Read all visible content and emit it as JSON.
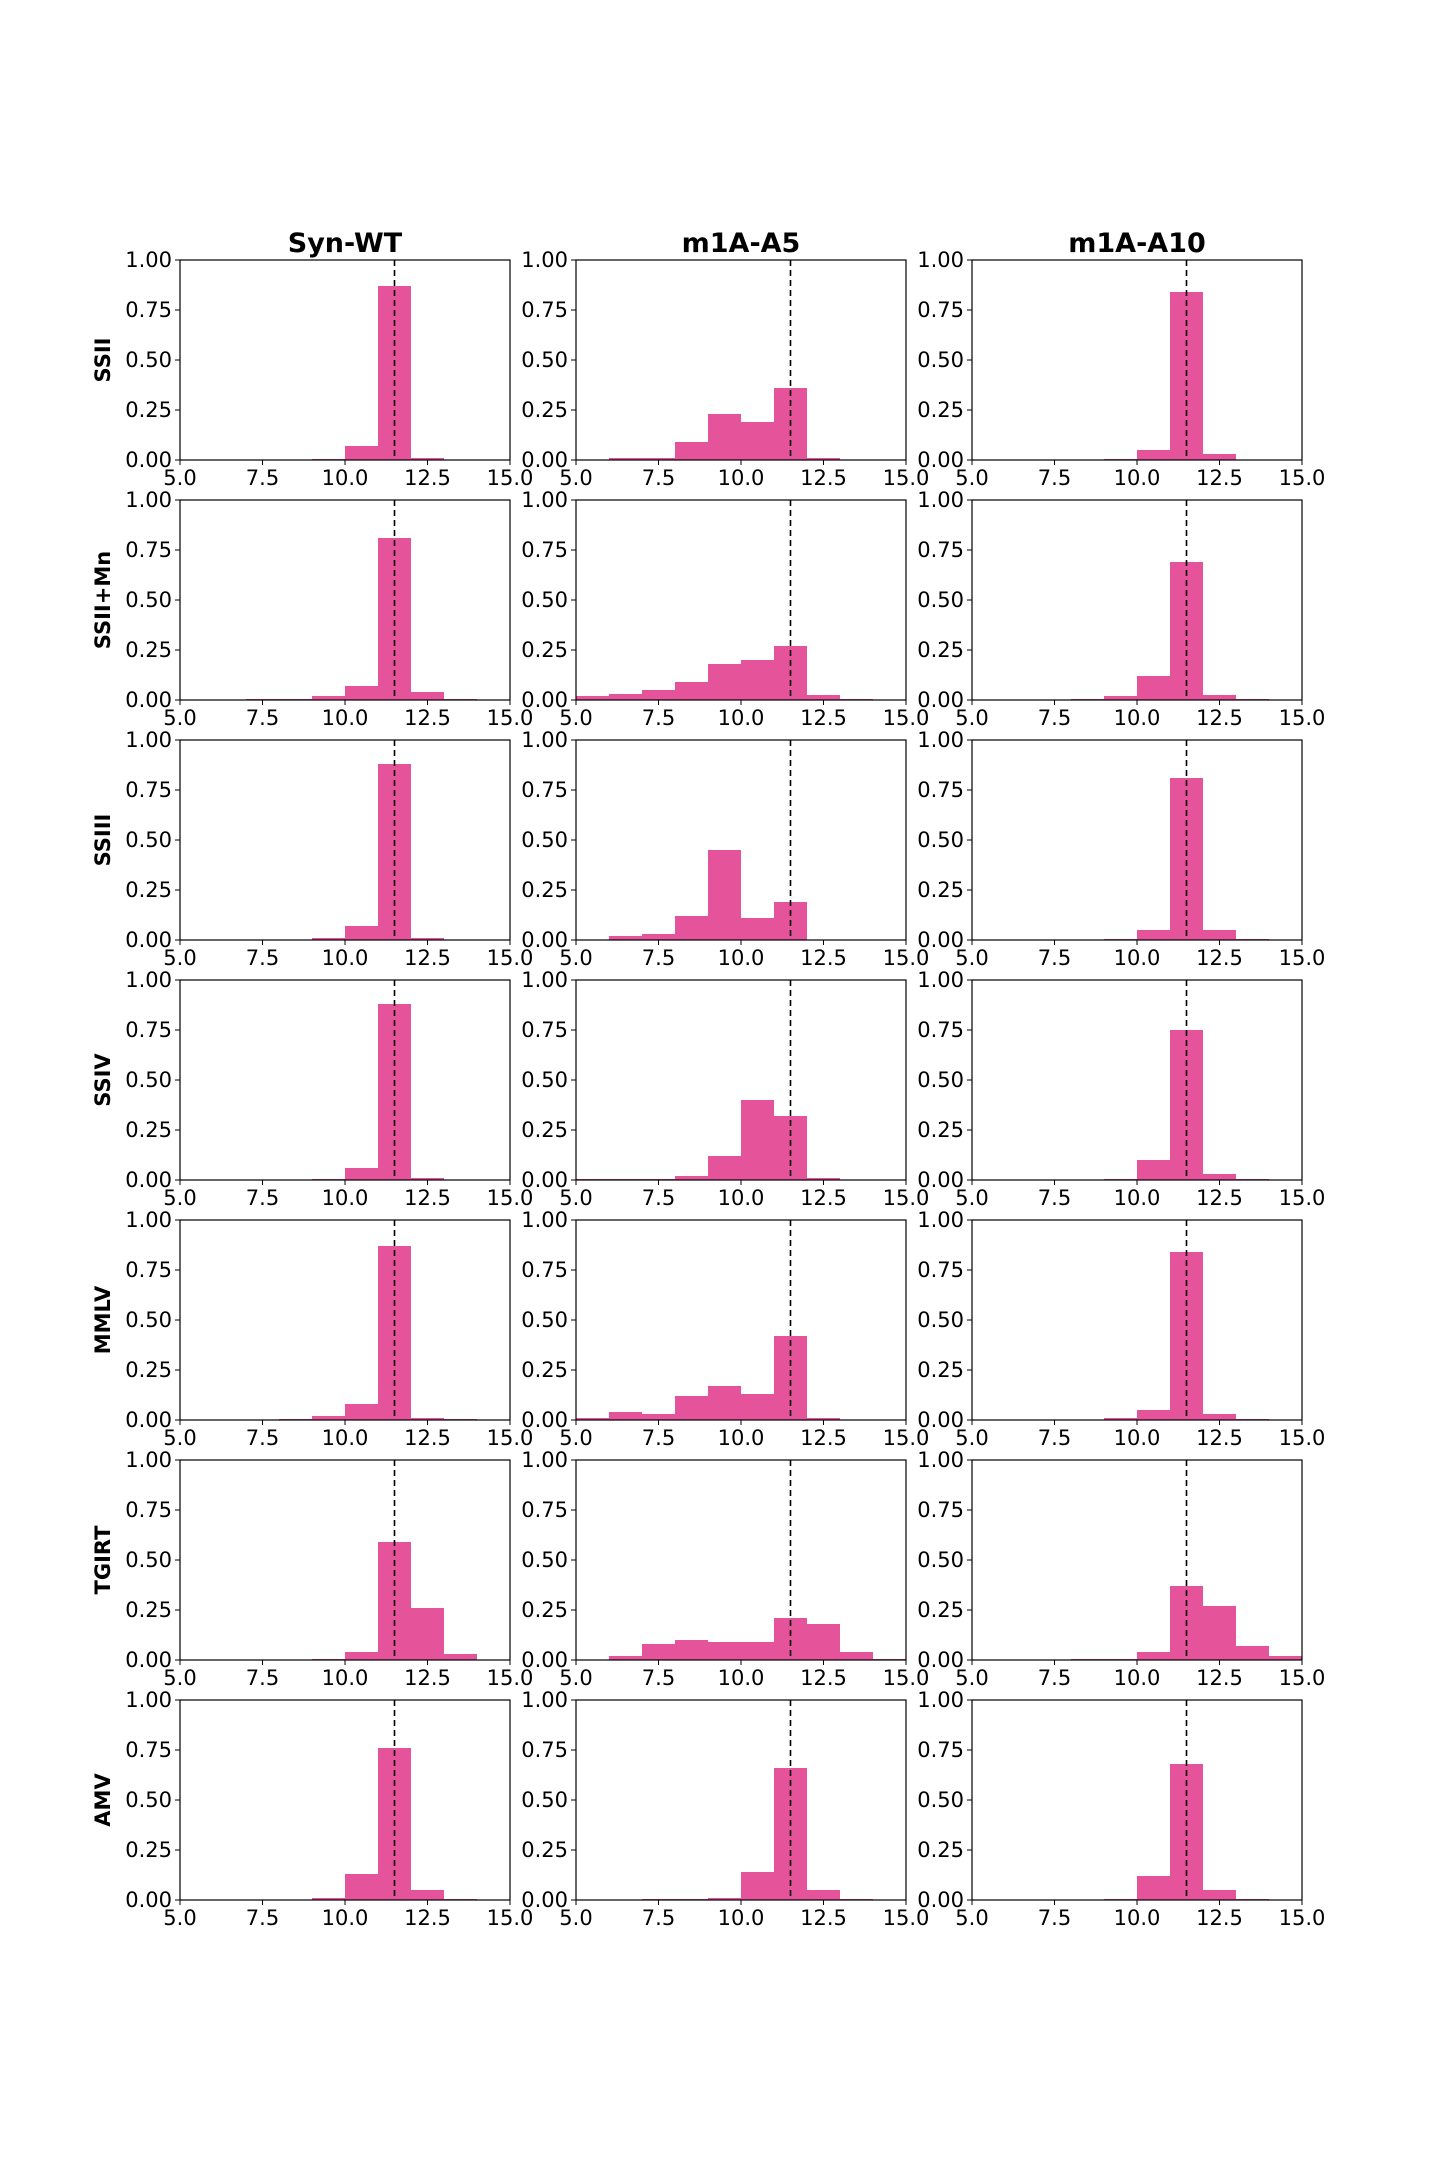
{
  "colors": {
    "bar": "#e5539a",
    "refline": "#000000",
    "frame": "#000000"
  },
  "chart_data": {
    "type": "bar",
    "layout": "grid",
    "columns": [
      "Syn-WT",
      "m1A-A5",
      "m1A-A10"
    ],
    "rows": [
      "SSII",
      "SSII+Mn",
      "SSIII",
      "SSIV",
      "MMLV",
      "TGIRT",
      "AMV"
    ],
    "xlim": [
      5.0,
      15.0
    ],
    "ylim": [
      0.0,
      1.0
    ],
    "xticks": [
      "5.0",
      "7.5",
      "10.0",
      "12.5",
      "15.0"
    ],
    "yticks": [
      "0.00",
      "0.25",
      "0.50",
      "0.75",
      "1.00"
    ],
    "bin_edges": [
      5.0,
      6.0,
      7.0,
      8.0,
      9.0,
      10.0,
      11.0,
      12.0,
      13.0,
      14.0,
      15.0
    ],
    "reference_line_x": 11.5,
    "grid": false,
    "panels": [
      [
        {
          "row": "SSII",
          "col": "Syn-WT",
          "values": [
            0,
            0,
            0,
            0,
            0.005,
            0.07,
            0.87,
            0.01,
            0,
            0
          ]
        },
        {
          "row": "SSII",
          "col": "m1A-A5",
          "values": [
            0,
            0.01,
            0.01,
            0.09,
            0.23,
            0.19,
            0.36,
            0.01,
            0,
            0
          ]
        },
        {
          "row": "SSII",
          "col": "m1A-A10",
          "values": [
            0,
            0,
            0,
            0,
            0.005,
            0.05,
            0.84,
            0.03,
            0,
            0
          ]
        }
      ],
      [
        {
          "row": "SSII+Mn",
          "col": "Syn-WT",
          "values": [
            0,
            0,
            0.005,
            0.005,
            0.02,
            0.07,
            0.81,
            0.04,
            0.005,
            0
          ]
        },
        {
          "row": "SSII+Mn",
          "col": "m1A-A5",
          "values": [
            0.02,
            0.03,
            0.05,
            0.09,
            0.18,
            0.2,
            0.27,
            0.025,
            0.005,
            0
          ]
        },
        {
          "row": "SSII+Mn",
          "col": "m1A-A10",
          "values": [
            0,
            0,
            0,
            0.005,
            0.02,
            0.12,
            0.69,
            0.025,
            0.005,
            0
          ]
        }
      ],
      [
        {
          "row": "SSIII",
          "col": "Syn-WT",
          "values": [
            0,
            0,
            0,
            0,
            0.01,
            0.07,
            0.88,
            0.01,
            0,
            0
          ]
        },
        {
          "row": "SSIII",
          "col": "m1A-A5",
          "values": [
            0,
            0.02,
            0.03,
            0.12,
            0.45,
            0.11,
            0.19,
            0,
            0,
            0
          ]
        },
        {
          "row": "SSIII",
          "col": "m1A-A10",
          "values": [
            0,
            0,
            0,
            0,
            0.005,
            0.05,
            0.81,
            0.05,
            0.005,
            0
          ]
        }
      ],
      [
        {
          "row": "SSIV",
          "col": "Syn-WT",
          "values": [
            0,
            0,
            0,
            0,
            0.005,
            0.06,
            0.88,
            0.01,
            0,
            0
          ]
        },
        {
          "row": "SSIV",
          "col": "m1A-A5",
          "values": [
            0.005,
            0.005,
            0.005,
            0.02,
            0.12,
            0.4,
            0.32,
            0.01,
            0,
            0
          ]
        },
        {
          "row": "SSIV",
          "col": "m1A-A10",
          "values": [
            0,
            0,
            0,
            0,
            0.005,
            0.1,
            0.75,
            0.03,
            0.005,
            0
          ]
        }
      ],
      [
        {
          "row": "MMLV",
          "col": "Syn-WT",
          "values": [
            0,
            0,
            0,
            0.005,
            0.02,
            0.08,
            0.87,
            0.01,
            0.005,
            0
          ]
        },
        {
          "row": "MMLV",
          "col": "m1A-A5",
          "values": [
            0.01,
            0.04,
            0.03,
            0.12,
            0.17,
            0.13,
            0.42,
            0.01,
            0,
            0
          ]
        },
        {
          "row": "MMLV",
          "col": "m1A-A10",
          "values": [
            0,
            0,
            0,
            0,
            0.01,
            0.05,
            0.84,
            0.03,
            0.005,
            0
          ]
        }
      ],
      [
        {
          "row": "TGIRT",
          "col": "Syn-WT",
          "values": [
            0,
            0,
            0,
            0,
            0.005,
            0.04,
            0.59,
            0.26,
            0.03,
            0
          ]
        },
        {
          "row": "TGIRT",
          "col": "m1A-A5",
          "values": [
            0,
            0.02,
            0.08,
            0.1,
            0.09,
            0.09,
            0.21,
            0.18,
            0.04,
            0.005
          ]
        },
        {
          "row": "TGIRT",
          "col": "m1A-A10",
          "values": [
            0,
            0,
            0,
            0.005,
            0.005,
            0.04,
            0.37,
            0.27,
            0.07,
            0.02
          ]
        }
      ],
      [
        {
          "row": "AMV",
          "col": "Syn-WT",
          "values": [
            0,
            0,
            0,
            0,
            0.01,
            0.13,
            0.76,
            0.05,
            0.005,
            0
          ]
        },
        {
          "row": "AMV",
          "col": "m1A-A5",
          "values": [
            0,
            0,
            0.005,
            0.005,
            0.01,
            0.14,
            0.66,
            0.05,
            0.005,
            0
          ]
        },
        {
          "row": "AMV",
          "col": "m1A-A10",
          "values": [
            0,
            0,
            0,
            0,
            0.005,
            0.12,
            0.68,
            0.05,
            0.005,
            0
          ]
        }
      ]
    ]
  }
}
